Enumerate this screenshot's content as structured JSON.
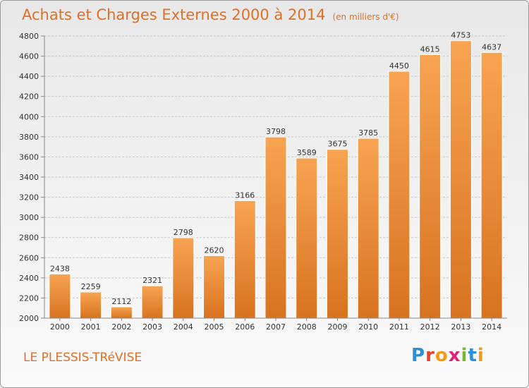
{
  "title": "Achats et Charges Externes 2000 à 2014",
  "subtitle": "(en milliers d'€)",
  "commune": "LE PLESSIS-TRéVISE",
  "logo_text": "Proxiti",
  "colors": {
    "accent": "#e26f24",
    "bar_light": "#f7a452",
    "bar_dark": "#d8731f"
  },
  "chart_data": {
    "type": "bar",
    "categories": [
      "2000",
      "2001",
      "2002",
      "2003",
      "2004",
      "2005",
      "2006",
      "2007",
      "2008",
      "2009",
      "2010",
      "2011",
      "2012",
      "2013",
      "2014"
    ],
    "values": [
      2438,
      2259,
      2112,
      2321,
      2798,
      2620,
      3166,
      3798,
      3589,
      3675,
      3785,
      4450,
      4615,
      4753,
      4637
    ],
    "ylim": [
      2000,
      4800
    ],
    "yticks": [
      2000,
      2200,
      2400,
      2600,
      2800,
      3000,
      3200,
      3400,
      3600,
      3800,
      4000,
      4200,
      4400,
      4600,
      4800
    ],
    "grid": true
  }
}
